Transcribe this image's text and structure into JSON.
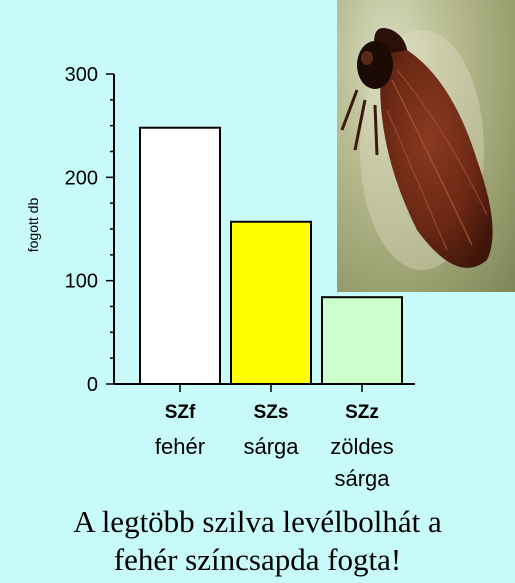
{
  "chart_data": {
    "type": "bar",
    "categories": [
      "SZf",
      "SZs",
      "SZz"
    ],
    "category_sublabels": [
      "fehér",
      "sárga",
      "zöldes\nsárga"
    ],
    "values": [
      248,
      157,
      84
    ],
    "bar_colors": [
      "#ffffff",
      "#ffff00",
      "#ccffcc"
    ],
    "ylabel": "fogott db",
    "ylim": [
      0,
      300
    ],
    "yticks": [
      0,
      100,
      200,
      300
    ],
    "grid": false
  },
  "photo": {
    "subject": "plum psyllid photo"
  },
  "caption": {
    "line1": "A legtöbb szilva levélbolhát a",
    "line2": "fehér színcsapda fogta!"
  }
}
